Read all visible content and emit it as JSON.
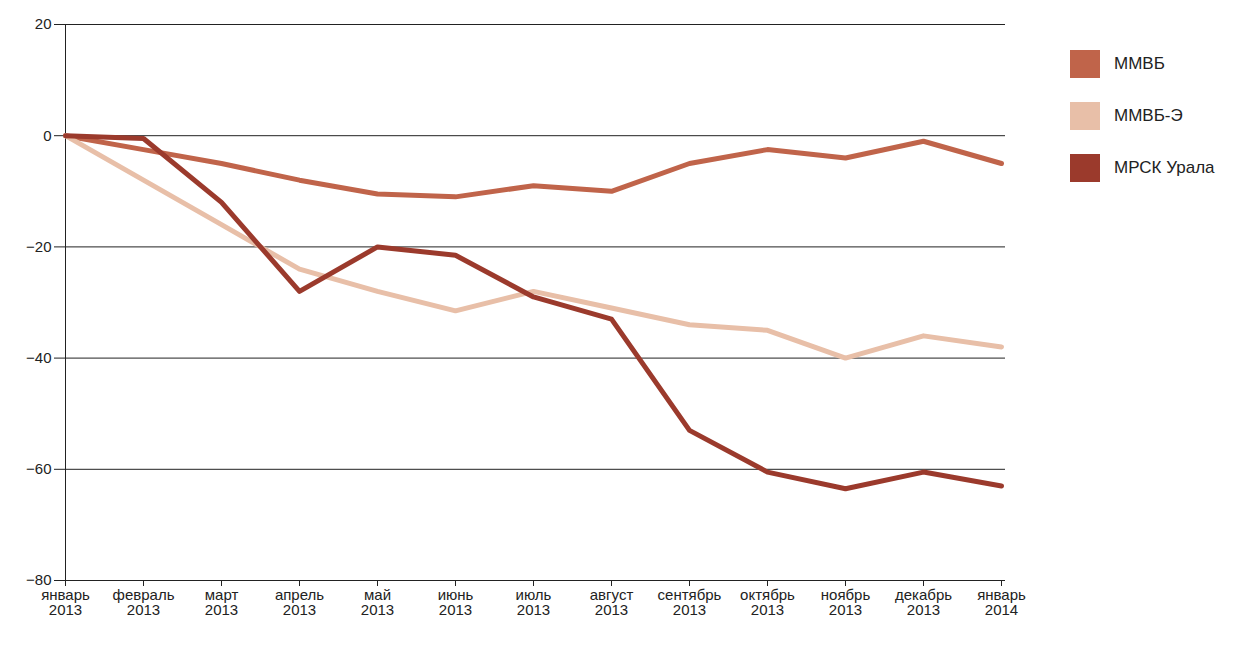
{
  "chart_data": {
    "type": "line",
    "categories": [
      "январь 2013",
      "февраль 2013",
      "март 2013",
      "апрель 2013",
      "май 2013",
      "июнь 2013",
      "июль 2013",
      "август 2013",
      "сентябрь 2013",
      "октябрь 2013",
      "ноябрь 2013",
      "декабрь 2013",
      "январь 2014"
    ],
    "series": [
      {
        "name": "ММВБ",
        "color": "#c0644a",
        "values": [
          0,
          -2.5,
          -5,
          -8,
          -10.5,
          -11,
          -9,
          -10,
          -5,
          -2.5,
          -4,
          -1,
          -5
        ]
      },
      {
        "name": "ММВБ-Э",
        "color": "#e8bfa8",
        "values": [
          0,
          -8,
          -16,
          -24,
          -28,
          -31.5,
          -28,
          -31,
          -34,
          -35,
          -40,
          -36,
          -38
        ]
      },
      {
        "name": "МРСК Урала",
        "color": "#9b3a2c",
        "values": [
          0,
          -0.5,
          -12,
          -28,
          -20,
          -21.5,
          -29,
          -33,
          -53,
          -60.5,
          -63.5,
          -60.5,
          -63
        ]
      }
    ],
    "ylim": [
      -80,
      20
    ],
    "yticks": [
      -80,
      -60,
      -40,
      -20,
      0,
      20
    ],
    "grid": true,
    "legend": "right"
  }
}
